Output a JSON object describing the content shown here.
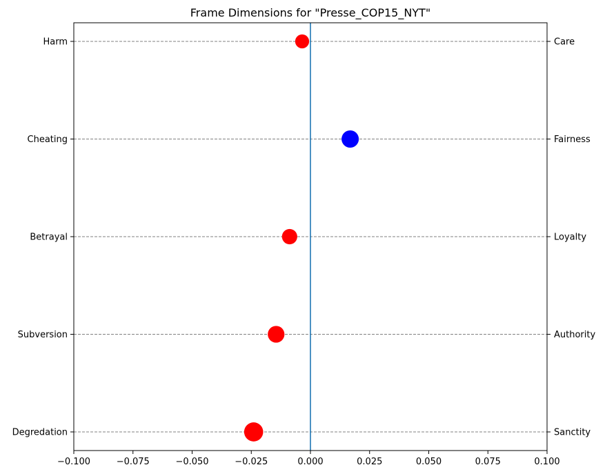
{
  "chart_data": {
    "type": "scatter",
    "title": "Frame Dimensions for \"Presse_COP15_NYT\"",
    "xlabel": "",
    "ylabel": "",
    "xlim": [
      -0.1,
      0.1
    ],
    "x_ticks": [
      -0.1,
      -0.075,
      -0.05,
      -0.025,
      0.0,
      0.025,
      0.05,
      0.075,
      0.1
    ],
    "x_tick_labels": [
      "−0.100",
      "−0.075",
      "−0.050",
      "−0.025",
      "0.000",
      "0.025",
      "0.050",
      "0.075",
      "0.100"
    ],
    "categories_left": [
      "Harm",
      "Cheating",
      "Betrayal",
      "Subversion",
      "Degredation"
    ],
    "categories_right": [
      "Care",
      "Fairness",
      "Loyalty",
      "Authority",
      "Sanctity"
    ],
    "values": [
      -0.0035,
      0.0168,
      -0.0088,
      -0.0145,
      -0.024
    ],
    "grid": "horizontal dashed at each category",
    "reference_line_x": 0.0,
    "colors": {
      "positive": "#0000ff",
      "negative": "#ff0000",
      "reference_line": "#1f77b4",
      "grid": "#808080"
    }
  }
}
